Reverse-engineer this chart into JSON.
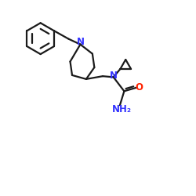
{
  "background_color": "#ffffff",
  "line_color": "#1a1a1a",
  "N_color": "#3333ff",
  "O_color": "#ff2200",
  "line_width": 1.6,
  "figsize": [
    2.5,
    2.5
  ],
  "dpi": 100,
  "xlim": [
    0.0,
    10.0
  ],
  "ylim": [
    0.0,
    10.0
  ]
}
